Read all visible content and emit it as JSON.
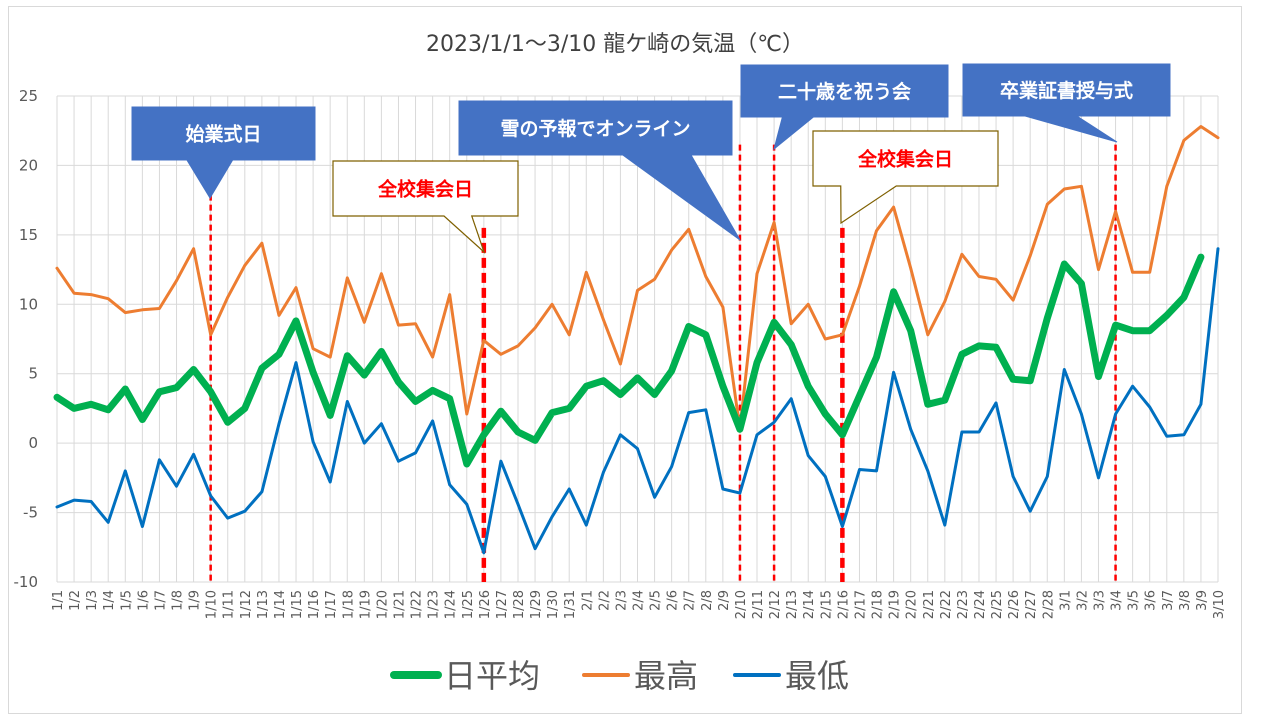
{
  "chart_data": {
    "type": "line",
    "title": "2023/1/1～3/10 龍ケ崎の気温（℃）",
    "ylim": [
      -10,
      25
    ],
    "yticks": [
      -10,
      -5,
      0,
      5,
      10,
      15,
      20,
      25
    ],
    "grid": true,
    "legend_position": "bottom",
    "categories": [
      "1/1",
      "1/2",
      "1/3",
      "1/4",
      "1/5",
      "1/6",
      "1/7",
      "1/8",
      "1/9",
      "1/10",
      "1/11",
      "1/12",
      "1/13",
      "1/14",
      "1/15",
      "1/16",
      "1/17",
      "1/18",
      "1/19",
      "1/20",
      "1/21",
      "1/22",
      "1/23",
      "1/24",
      "1/25",
      "1/26",
      "1/27",
      "1/28",
      "1/29",
      "1/30",
      "1/31",
      "2/1",
      "2/2",
      "2/3",
      "2/4",
      "2/5",
      "2/6",
      "2/7",
      "2/8",
      "2/9",
      "2/10",
      "2/11",
      "2/12",
      "2/13",
      "2/14",
      "2/15",
      "2/16",
      "2/17",
      "2/18",
      "2/19",
      "2/20",
      "2/21",
      "2/22",
      "2/23",
      "2/24",
      "2/25",
      "2/26",
      "2/27",
      "2/28",
      "3/1",
      "3/2",
      "3/3",
      "3/4",
      "3/5",
      "3/6",
      "3/7",
      "3/8",
      "3/9",
      "3/10"
    ],
    "series": [
      {
        "name": "最高",
        "color": "#ed7d31",
        "width": 3,
        "values": [
          12.6,
          10.8,
          10.7,
          10.4,
          9.4,
          9.6,
          9.7,
          11.7,
          14.0,
          7.8,
          10.5,
          12.8,
          14.4,
          9.2,
          11.2,
          6.8,
          6.2,
          11.9,
          8.7,
          12.2,
          8.5,
          8.6,
          6.2,
          10.7,
          2.1,
          7.4,
          6.4,
          7.0,
          8.3,
          10.0,
          7.8,
          12.3,
          8.9,
          5.7,
          11.0,
          11.8,
          13.9,
          15.4,
          12.0,
          9.8,
          1.0,
          12.2,
          15.9,
          8.6,
          10.0,
          7.5,
          7.8,
          11.3,
          15.3,
          17.0,
          12.6,
          7.8,
          10.2,
          13.6,
          12.0,
          11.8,
          10.3,
          13.5,
          17.2,
          18.3,
          18.5,
          12.5,
          16.7,
          12.3,
          12.3,
          18.5,
          21.8,
          22.8,
          22.0
        ]
      },
      {
        "name": "日平均",
        "color": "#00b050",
        "width": 7,
        "values": [
          3.3,
          2.5,
          2.8,
          2.4,
          3.9,
          1.7,
          3.7,
          4.0,
          5.3,
          3.7,
          1.5,
          2.5,
          5.4,
          6.4,
          8.8,
          5.1,
          2.0,
          6.3,
          4.9,
          6.6,
          4.4,
          3.0,
          3.8,
          3.2,
          -1.5,
          0.6,
          2.3,
          0.8,
          0.2,
          2.2,
          2.5,
          4.1,
          4.5,
          3.5,
          4.7,
          3.5,
          5.2,
          8.4,
          7.8,
          4.1,
          1.0,
          5.8,
          8.7,
          7.1,
          4.1,
          2.1,
          0.6,
          3.4,
          6.2,
          10.9,
          8.1,
          2.8,
          3.1,
          6.4,
          7.0,
          6.9,
          4.6,
          4.5,
          9.0,
          12.9,
          11.5,
          4.8,
          8.5,
          8.1,
          8.1,
          9.2,
          10.5,
          13.4,
          null
        ]
      },
      {
        "name": "最低",
        "color": "#0070c0",
        "width": 3,
        "values": [
          -4.6,
          -4.1,
          -4.2,
          -5.7,
          -2.0,
          -6.0,
          -1.2,
          -3.1,
          -0.8,
          -3.8,
          -5.4,
          -4.9,
          -3.5,
          1.4,
          5.8,
          0.1,
          -2.8,
          3.0,
          0.0,
          1.4,
          -1.3,
          -0.7,
          1.6,
          -3.0,
          -4.4,
          -7.9,
          -1.3,
          -4.4,
          -7.6,
          -5.3,
          -3.3,
          -5.9,
          -2.1,
          0.6,
          -0.4,
          -3.9,
          -1.7,
          2.2,
          2.4,
          -3.3,
          -3.6,
          0.6,
          1.5,
          3.2,
          -0.9,
          -2.4,
          -6.0,
          -1.9,
          -2.0,
          5.1,
          1.0,
          -2.0,
          -5.9,
          0.8,
          0.8,
          2.9,
          -2.4,
          -4.9,
          -2.4,
          5.3,
          2.1,
          -2.5,
          2.1,
          4.1,
          2.6,
          0.5,
          0.6,
          2.8,
          14.0
        ]
      }
    ],
    "legend_order": [
      "日平均",
      "最高",
      "最低"
    ],
    "annotations": [
      {
        "text": "始業式日",
        "date": "1/10",
        "text_color": "#ffffff",
        "fill": "#4472c4",
        "line": "thin"
      },
      {
        "text": "全校集会日",
        "date": "1/26",
        "text_color": "#ff0000",
        "fill": "#ffffff",
        "line": "thick"
      },
      {
        "text": "雪の予報でオンライン",
        "date": "2/10",
        "text_color": "#ffffff",
        "fill": "#4472c4",
        "line": "thin"
      },
      {
        "text": "二十歳を祝う会",
        "date": "2/12",
        "text_color": "#ffffff",
        "fill": "#4472c4",
        "line": "thin"
      },
      {
        "text": "全校集会日",
        "date": "2/16",
        "text_color": "#ff0000",
        "fill": "#ffffff",
        "line": "thick"
      },
      {
        "text": "卒業証書授与式",
        "date": "3/4",
        "text_color": "#ffffff",
        "fill": "#4472c4",
        "line": "thin"
      }
    ],
    "marker_line_color": "#ff0000"
  }
}
